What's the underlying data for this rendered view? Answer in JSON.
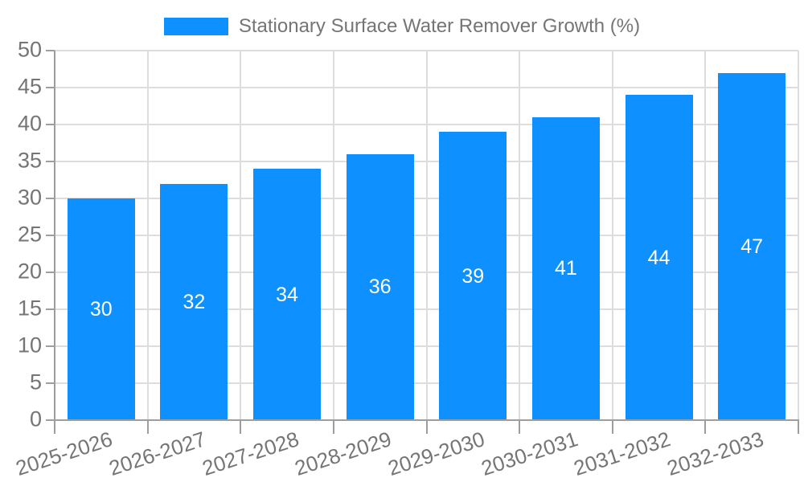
{
  "legend": {
    "label": "Stationary Surface Water Remover Growth (%)"
  },
  "chart_data": {
    "type": "bar",
    "title": "Stationary Surface Water Remover Growth (%)",
    "categories": [
      "2025-2026",
      "2026-2027",
      "2027-2028",
      "2028-2029",
      "2029-2030",
      "2030-2031",
      "2031-2032",
      "2032-2033"
    ],
    "values": [
      30,
      32,
      34,
      36,
      39,
      41,
      44,
      47
    ],
    "bar_labels": [
      "30",
      "32",
      "34",
      "36",
      "39",
      "41",
      "44",
      "47"
    ],
    "ytick_labels": [
      "0",
      "5",
      "10",
      "15",
      "20",
      "25",
      "30",
      "35",
      "40",
      "45",
      "50"
    ],
    "ylim": [
      0,
      50
    ],
    "ytick_step": 5,
    "grid": true,
    "legend_position": "top-center",
    "xlabel": "",
    "ylabel": "",
    "bar_color": "#0E90FF",
    "bar_label_color": "#FFFFFF",
    "grid_color": "#DDDDDD",
    "axis_color": "#9E9E9E",
    "tick_label_color": "#757575"
  }
}
